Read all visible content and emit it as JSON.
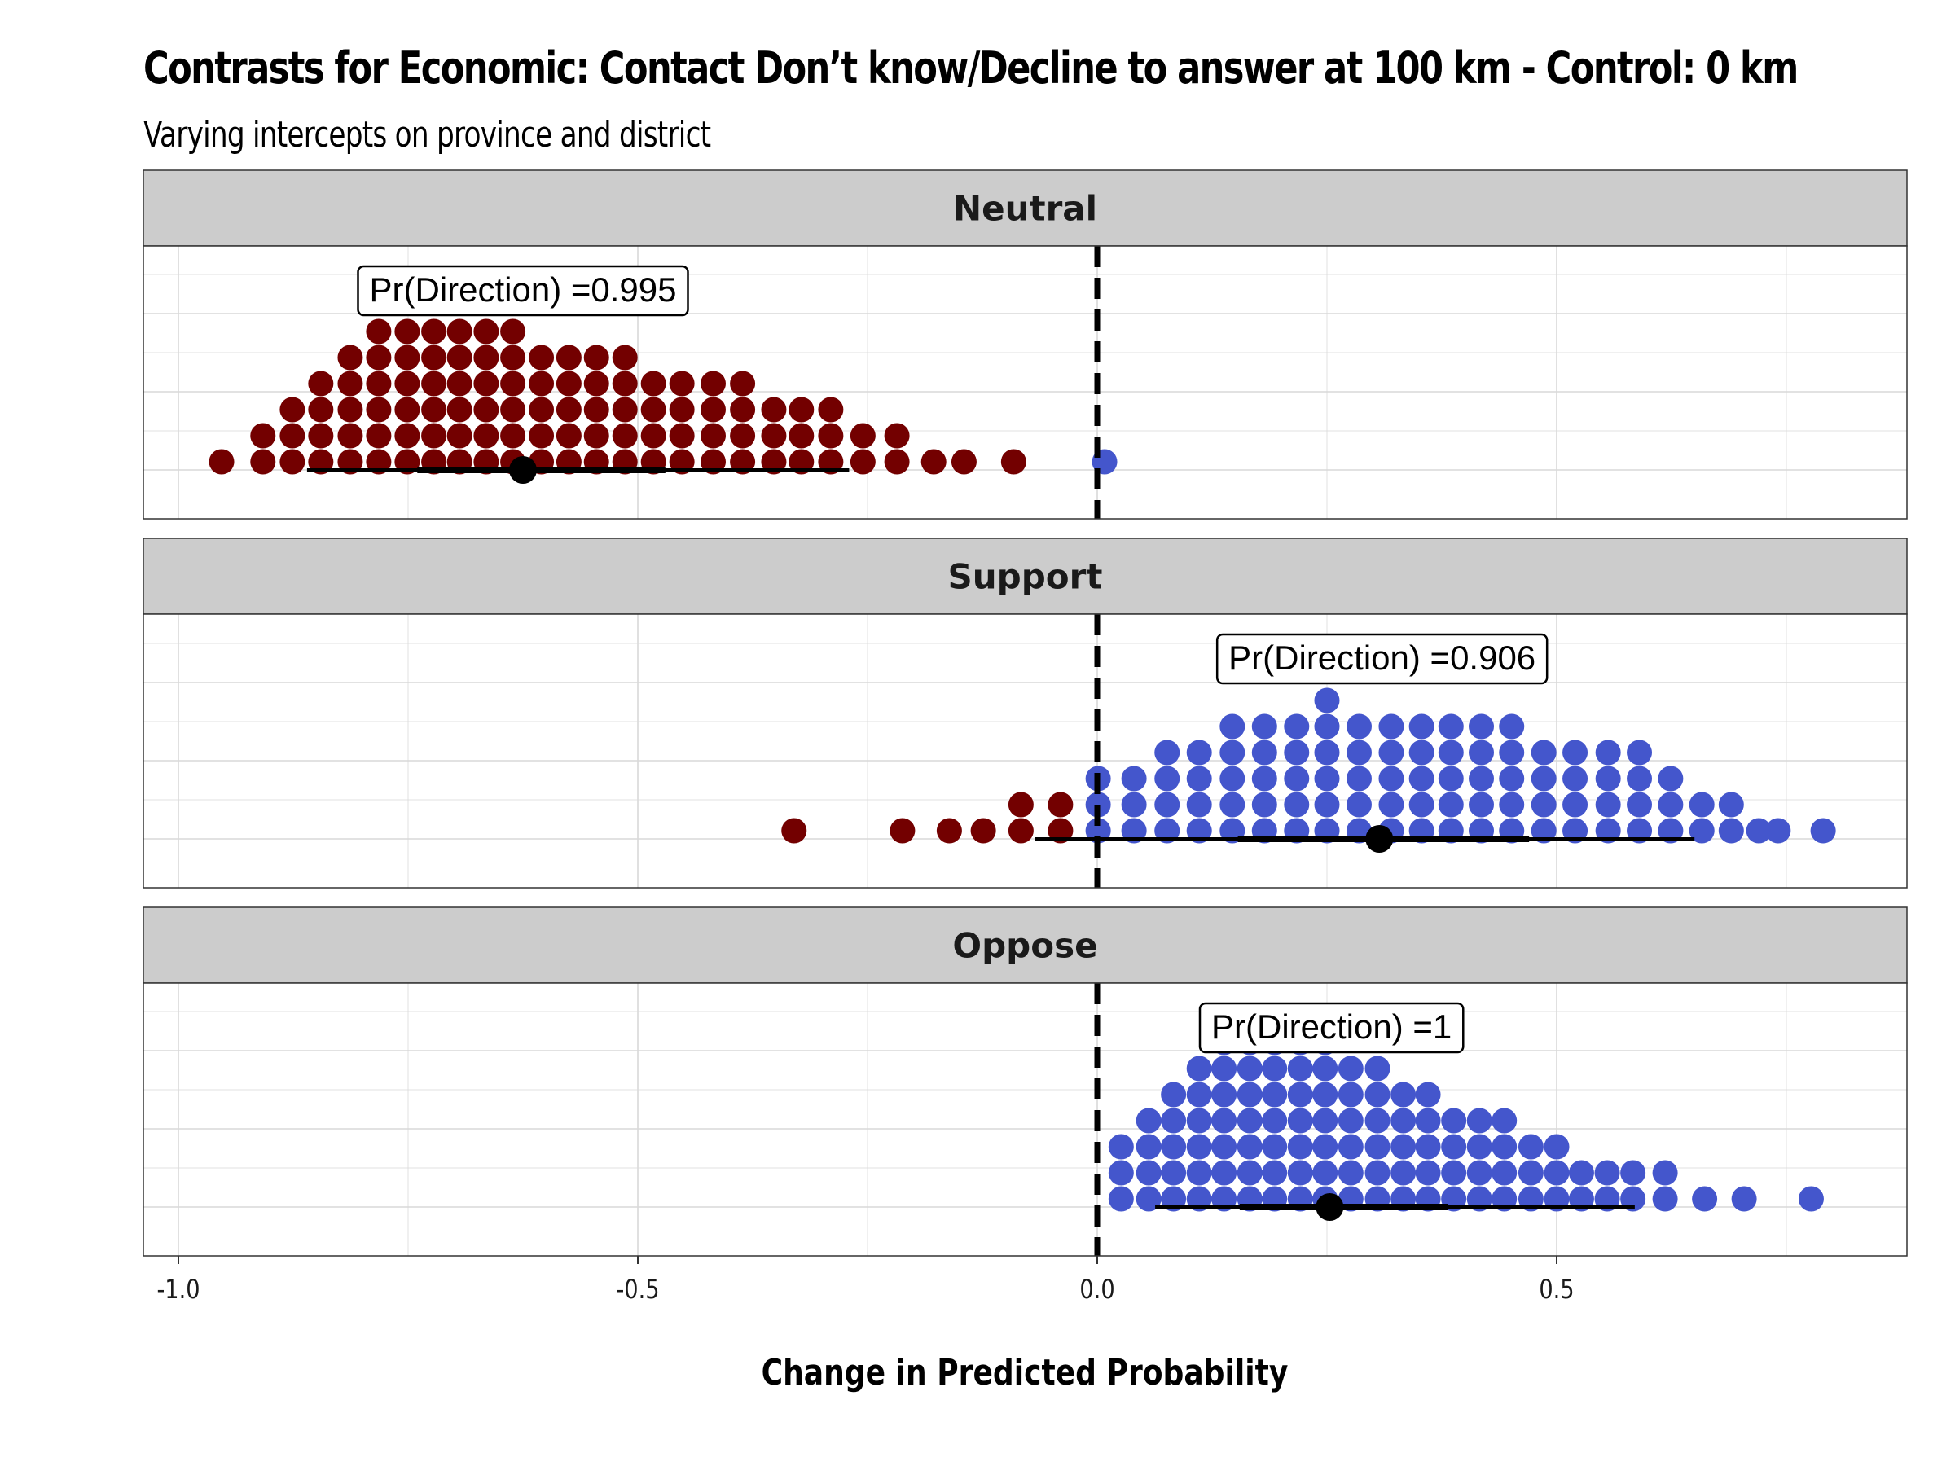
{
  "title": "Contrasts for Economic: Contact Don’t know/Decline to answer at 100 km - Control: 0 km",
  "subtitle": "Varying intercepts on province and district",
  "colors": {
    "negative": "#730000",
    "positive": "#4456cc",
    "strip_bg": "#cccccc",
    "grid": "#d9d9d9",
    "reference_line": "#000000"
  },
  "chart_data": {
    "type": "dotplot",
    "xlabel": "Change in Predicted Probability",
    "xlim": [
      -1.04,
      0.88
    ],
    "xticks": [
      -1.0,
      -0.5,
      0.0,
      0.5
    ],
    "xtick_labels": [
      "-1.0",
      "-0.5",
      "0.0",
      "0.5"
    ],
    "reference_line_x": 0.0,
    "grid": true,
    "panels": [
      {
        "label": "Neutral",
        "annotation": "Pr(Direction) =0.995",
        "annotation_x": -0.625,
        "point_estimate": -0.625,
        "interval_inner": [
          -0.74,
          -0.47
        ],
        "interval_outer": [
          -0.86,
          -0.27
        ],
        "dots": [
          [
            -0.953,
            0
          ],
          [
            -0.908,
            0
          ],
          [
            -0.908,
            1
          ],
          [
            -0.876,
            0
          ],
          [
            -0.876,
            1
          ],
          [
            -0.876,
            2
          ],
          [
            -0.845,
            0
          ],
          [
            -0.845,
            1
          ],
          [
            -0.845,
            2
          ],
          [
            -0.845,
            3
          ],
          [
            -0.813,
            0
          ],
          [
            -0.813,
            1
          ],
          [
            -0.813,
            2
          ],
          [
            -0.813,
            3
          ],
          [
            -0.813,
            4
          ],
          [
            -0.782,
            0
          ],
          [
            -0.782,
            1
          ],
          [
            -0.782,
            2
          ],
          [
            -0.782,
            3
          ],
          [
            -0.782,
            4
          ],
          [
            -0.782,
            5
          ],
          [
            -0.751,
            0
          ],
          [
            -0.751,
            1
          ],
          [
            -0.751,
            2
          ],
          [
            -0.751,
            3
          ],
          [
            -0.751,
            4
          ],
          [
            -0.751,
            5
          ],
          [
            -0.722,
            0
          ],
          [
            -0.722,
            1
          ],
          [
            -0.722,
            2
          ],
          [
            -0.722,
            3
          ],
          [
            -0.722,
            4
          ],
          [
            -0.722,
            5
          ],
          [
            -0.694,
            0
          ],
          [
            -0.694,
            1
          ],
          [
            -0.694,
            2
          ],
          [
            -0.694,
            3
          ],
          [
            -0.694,
            4
          ],
          [
            -0.694,
            5
          ],
          [
            -0.665,
            0
          ],
          [
            -0.665,
            1
          ],
          [
            -0.665,
            2
          ],
          [
            -0.665,
            3
          ],
          [
            -0.665,
            4
          ],
          [
            -0.665,
            5
          ],
          [
            -0.636,
            0
          ],
          [
            -0.636,
            1
          ],
          [
            -0.636,
            2
          ],
          [
            -0.636,
            3
          ],
          [
            -0.636,
            4
          ],
          [
            -0.636,
            5
          ],
          [
            -0.605,
            0
          ],
          [
            -0.605,
            1
          ],
          [
            -0.605,
            2
          ],
          [
            -0.605,
            3
          ],
          [
            -0.605,
            4
          ],
          [
            -0.575,
            0
          ],
          [
            -0.575,
            1
          ],
          [
            -0.575,
            2
          ],
          [
            -0.575,
            3
          ],
          [
            -0.575,
            4
          ],
          [
            -0.545,
            0
          ],
          [
            -0.545,
            1
          ],
          [
            -0.545,
            2
          ],
          [
            -0.545,
            3
          ],
          [
            -0.545,
            4
          ],
          [
            -0.514,
            0
          ],
          [
            -0.514,
            1
          ],
          [
            -0.514,
            2
          ],
          [
            -0.514,
            3
          ],
          [
            -0.514,
            4
          ],
          [
            -0.483,
            0
          ],
          [
            -0.483,
            1
          ],
          [
            -0.483,
            2
          ],
          [
            -0.483,
            3
          ],
          [
            -0.452,
            0
          ],
          [
            -0.452,
            1
          ],
          [
            -0.452,
            2
          ],
          [
            -0.452,
            3
          ],
          [
            -0.418,
            0
          ],
          [
            -0.418,
            1
          ],
          [
            -0.418,
            2
          ],
          [
            -0.418,
            3
          ],
          [
            -0.386,
            0
          ],
          [
            -0.386,
            1
          ],
          [
            -0.386,
            2
          ],
          [
            -0.386,
            3
          ],
          [
            -0.352,
            0
          ],
          [
            -0.352,
            1
          ],
          [
            -0.352,
            2
          ],
          [
            -0.322,
            0
          ],
          [
            -0.322,
            1
          ],
          [
            -0.322,
            2
          ],
          [
            -0.29,
            0
          ],
          [
            -0.29,
            1
          ],
          [
            -0.29,
            2
          ],
          [
            -0.255,
            0
          ],
          [
            -0.255,
            1
          ],
          [
            -0.218,
            0
          ],
          [
            -0.218,
            1
          ],
          [
            -0.178,
            0
          ],
          [
            -0.145,
            0
          ],
          [
            -0.091,
            0
          ],
          [
            0.008,
            0
          ]
        ]
      },
      {
        "label": "Support",
        "annotation": "Pr(Direction) =0.906",
        "annotation_x": 0.31,
        "point_estimate": 0.307,
        "interval_inner": [
          0.153,
          0.47
        ],
        "interval_outer": [
          -0.068,
          0.65
        ],
        "dots": [
          [
            -0.33,
            0
          ],
          [
            -0.212,
            0
          ],
          [
            -0.161,
            0
          ],
          [
            -0.124,
            0
          ],
          [
            -0.083,
            0
          ],
          [
            -0.083,
            1
          ],
          [
            -0.04,
            0
          ],
          [
            -0.04,
            1
          ],
          [
            0.001,
            0
          ],
          [
            0.001,
            1
          ],
          [
            0.001,
            2
          ],
          [
            0.04,
            0
          ],
          [
            0.04,
            1
          ],
          [
            0.04,
            2
          ],
          [
            0.076,
            0
          ],
          [
            0.076,
            1
          ],
          [
            0.076,
            2
          ],
          [
            0.076,
            3
          ],
          [
            0.111,
            0
          ],
          [
            0.111,
            1
          ],
          [
            0.111,
            2
          ],
          [
            0.111,
            3
          ],
          [
            0.147,
            0
          ],
          [
            0.147,
            1
          ],
          [
            0.147,
            2
          ],
          [
            0.147,
            3
          ],
          [
            0.147,
            4
          ],
          [
            0.182,
            0
          ],
          [
            0.182,
            1
          ],
          [
            0.182,
            2
          ],
          [
            0.182,
            3
          ],
          [
            0.182,
            4
          ],
          [
            0.217,
            0
          ],
          [
            0.217,
            1
          ],
          [
            0.217,
            2
          ],
          [
            0.217,
            3
          ],
          [
            0.217,
            4
          ],
          [
            0.25,
            0
          ],
          [
            0.25,
            1
          ],
          [
            0.25,
            2
          ],
          [
            0.25,
            3
          ],
          [
            0.25,
            4
          ],
          [
            0.25,
            5
          ],
          [
            0.285,
            0
          ],
          [
            0.285,
            1
          ],
          [
            0.285,
            2
          ],
          [
            0.285,
            3
          ],
          [
            0.285,
            4
          ],
          [
            0.32,
            0
          ],
          [
            0.32,
            1
          ],
          [
            0.32,
            2
          ],
          [
            0.32,
            3
          ],
          [
            0.32,
            4
          ],
          [
            0.353,
            0
          ],
          [
            0.353,
            1
          ],
          [
            0.353,
            2
          ],
          [
            0.353,
            3
          ],
          [
            0.353,
            4
          ],
          [
            0.385,
            0
          ],
          [
            0.385,
            1
          ],
          [
            0.385,
            2
          ],
          [
            0.385,
            3
          ],
          [
            0.385,
            4
          ],
          [
            0.418,
            0
          ],
          [
            0.418,
            1
          ],
          [
            0.418,
            2
          ],
          [
            0.418,
            3
          ],
          [
            0.418,
            4
          ],
          [
            0.451,
            0
          ],
          [
            0.451,
            1
          ],
          [
            0.451,
            2
          ],
          [
            0.451,
            3
          ],
          [
            0.451,
            4
          ],
          [
            0.486,
            0
          ],
          [
            0.486,
            1
          ],
          [
            0.486,
            2
          ],
          [
            0.486,
            3
          ],
          [
            0.52,
            0
          ],
          [
            0.52,
            1
          ],
          [
            0.52,
            2
          ],
          [
            0.52,
            3
          ],
          [
            0.556,
            0
          ],
          [
            0.556,
            1
          ],
          [
            0.556,
            2
          ],
          [
            0.556,
            3
          ],
          [
            0.59,
            0
          ],
          [
            0.59,
            1
          ],
          [
            0.59,
            2
          ],
          [
            0.59,
            3
          ],
          [
            0.624,
            0
          ],
          [
            0.624,
            1
          ],
          [
            0.624,
            2
          ],
          [
            0.658,
            0
          ],
          [
            0.658,
            1
          ],
          [
            0.69,
            0
          ],
          [
            0.69,
            1
          ],
          [
            0.72,
            0
          ],
          [
            0.741,
            0
          ],
          [
            0.79,
            0
          ]
        ]
      },
      {
        "label": "Oppose",
        "annotation": "Pr(Direction) =1",
        "annotation_x": 0.255,
        "point_estimate": 0.253,
        "interval_inner": [
          0.155,
          0.382
        ],
        "interval_outer": [
          0.063,
          0.585
        ],
        "dots": [
          [
            0.026,
            0
          ],
          [
            0.026,
            1
          ],
          [
            0.026,
            2
          ],
          [
            0.056,
            0
          ],
          [
            0.056,
            1
          ],
          [
            0.056,
            2
          ],
          [
            0.056,
            3
          ],
          [
            0.083,
            0
          ],
          [
            0.083,
            1
          ],
          [
            0.083,
            2
          ],
          [
            0.083,
            3
          ],
          [
            0.083,
            4
          ],
          [
            0.111,
            0
          ],
          [
            0.111,
            1
          ],
          [
            0.111,
            2
          ],
          [
            0.111,
            3
          ],
          [
            0.111,
            4
          ],
          [
            0.111,
            5
          ],
          [
            0.138,
            0
          ],
          [
            0.138,
            1
          ],
          [
            0.138,
            2
          ],
          [
            0.138,
            3
          ],
          [
            0.138,
            4
          ],
          [
            0.138,
            5
          ],
          [
            0.138,
            6
          ],
          [
            0.166,
            0
          ],
          [
            0.166,
            1
          ],
          [
            0.166,
            2
          ],
          [
            0.166,
            3
          ],
          [
            0.166,
            4
          ],
          [
            0.166,
            5
          ],
          [
            0.166,
            6
          ],
          [
            0.193,
            0
          ],
          [
            0.193,
            1
          ],
          [
            0.193,
            2
          ],
          [
            0.193,
            3
          ],
          [
            0.193,
            4
          ],
          [
            0.193,
            5
          ],
          [
            0.193,
            6
          ],
          [
            0.221,
            0
          ],
          [
            0.221,
            1
          ],
          [
            0.221,
            2
          ],
          [
            0.221,
            3
          ],
          [
            0.221,
            4
          ],
          [
            0.221,
            5
          ],
          [
            0.221,
            6
          ],
          [
            0.248,
            0
          ],
          [
            0.248,
            1
          ],
          [
            0.248,
            2
          ],
          [
            0.248,
            3
          ],
          [
            0.248,
            4
          ],
          [
            0.248,
            5
          ],
          [
            0.248,
            6
          ],
          [
            0.276,
            0
          ],
          [
            0.276,
            1
          ],
          [
            0.276,
            2
          ],
          [
            0.276,
            3
          ],
          [
            0.276,
            4
          ],
          [
            0.276,
            5
          ],
          [
            0.305,
            0
          ],
          [
            0.305,
            1
          ],
          [
            0.305,
            2
          ],
          [
            0.305,
            3
          ],
          [
            0.305,
            4
          ],
          [
            0.305,
            5
          ],
          [
            0.333,
            0
          ],
          [
            0.333,
            1
          ],
          [
            0.333,
            2
          ],
          [
            0.333,
            3
          ],
          [
            0.333,
            4
          ],
          [
            0.36,
            0
          ],
          [
            0.36,
            1
          ],
          [
            0.36,
            2
          ],
          [
            0.36,
            3
          ],
          [
            0.36,
            4
          ],
          [
            0.388,
            0
          ],
          [
            0.388,
            1
          ],
          [
            0.388,
            2
          ],
          [
            0.388,
            3
          ],
          [
            0.416,
            0
          ],
          [
            0.416,
            1
          ],
          [
            0.416,
            2
          ],
          [
            0.416,
            3
          ],
          [
            0.443,
            0
          ],
          [
            0.443,
            1
          ],
          [
            0.443,
            2
          ],
          [
            0.443,
            3
          ],
          [
            0.472,
            0
          ],
          [
            0.472,
            1
          ],
          [
            0.472,
            2
          ],
          [
            0.5,
            0
          ],
          [
            0.5,
            1
          ],
          [
            0.5,
            2
          ],
          [
            0.527,
            0
          ],
          [
            0.527,
            1
          ],
          [
            0.555,
            0
          ],
          [
            0.555,
            1
          ],
          [
            0.583,
            0
          ],
          [
            0.583,
            1
          ],
          [
            0.618,
            0
          ],
          [
            0.618,
            1
          ],
          [
            0.661,
            0
          ],
          [
            0.704,
            0
          ],
          [
            0.777,
            0
          ]
        ]
      }
    ]
  }
}
